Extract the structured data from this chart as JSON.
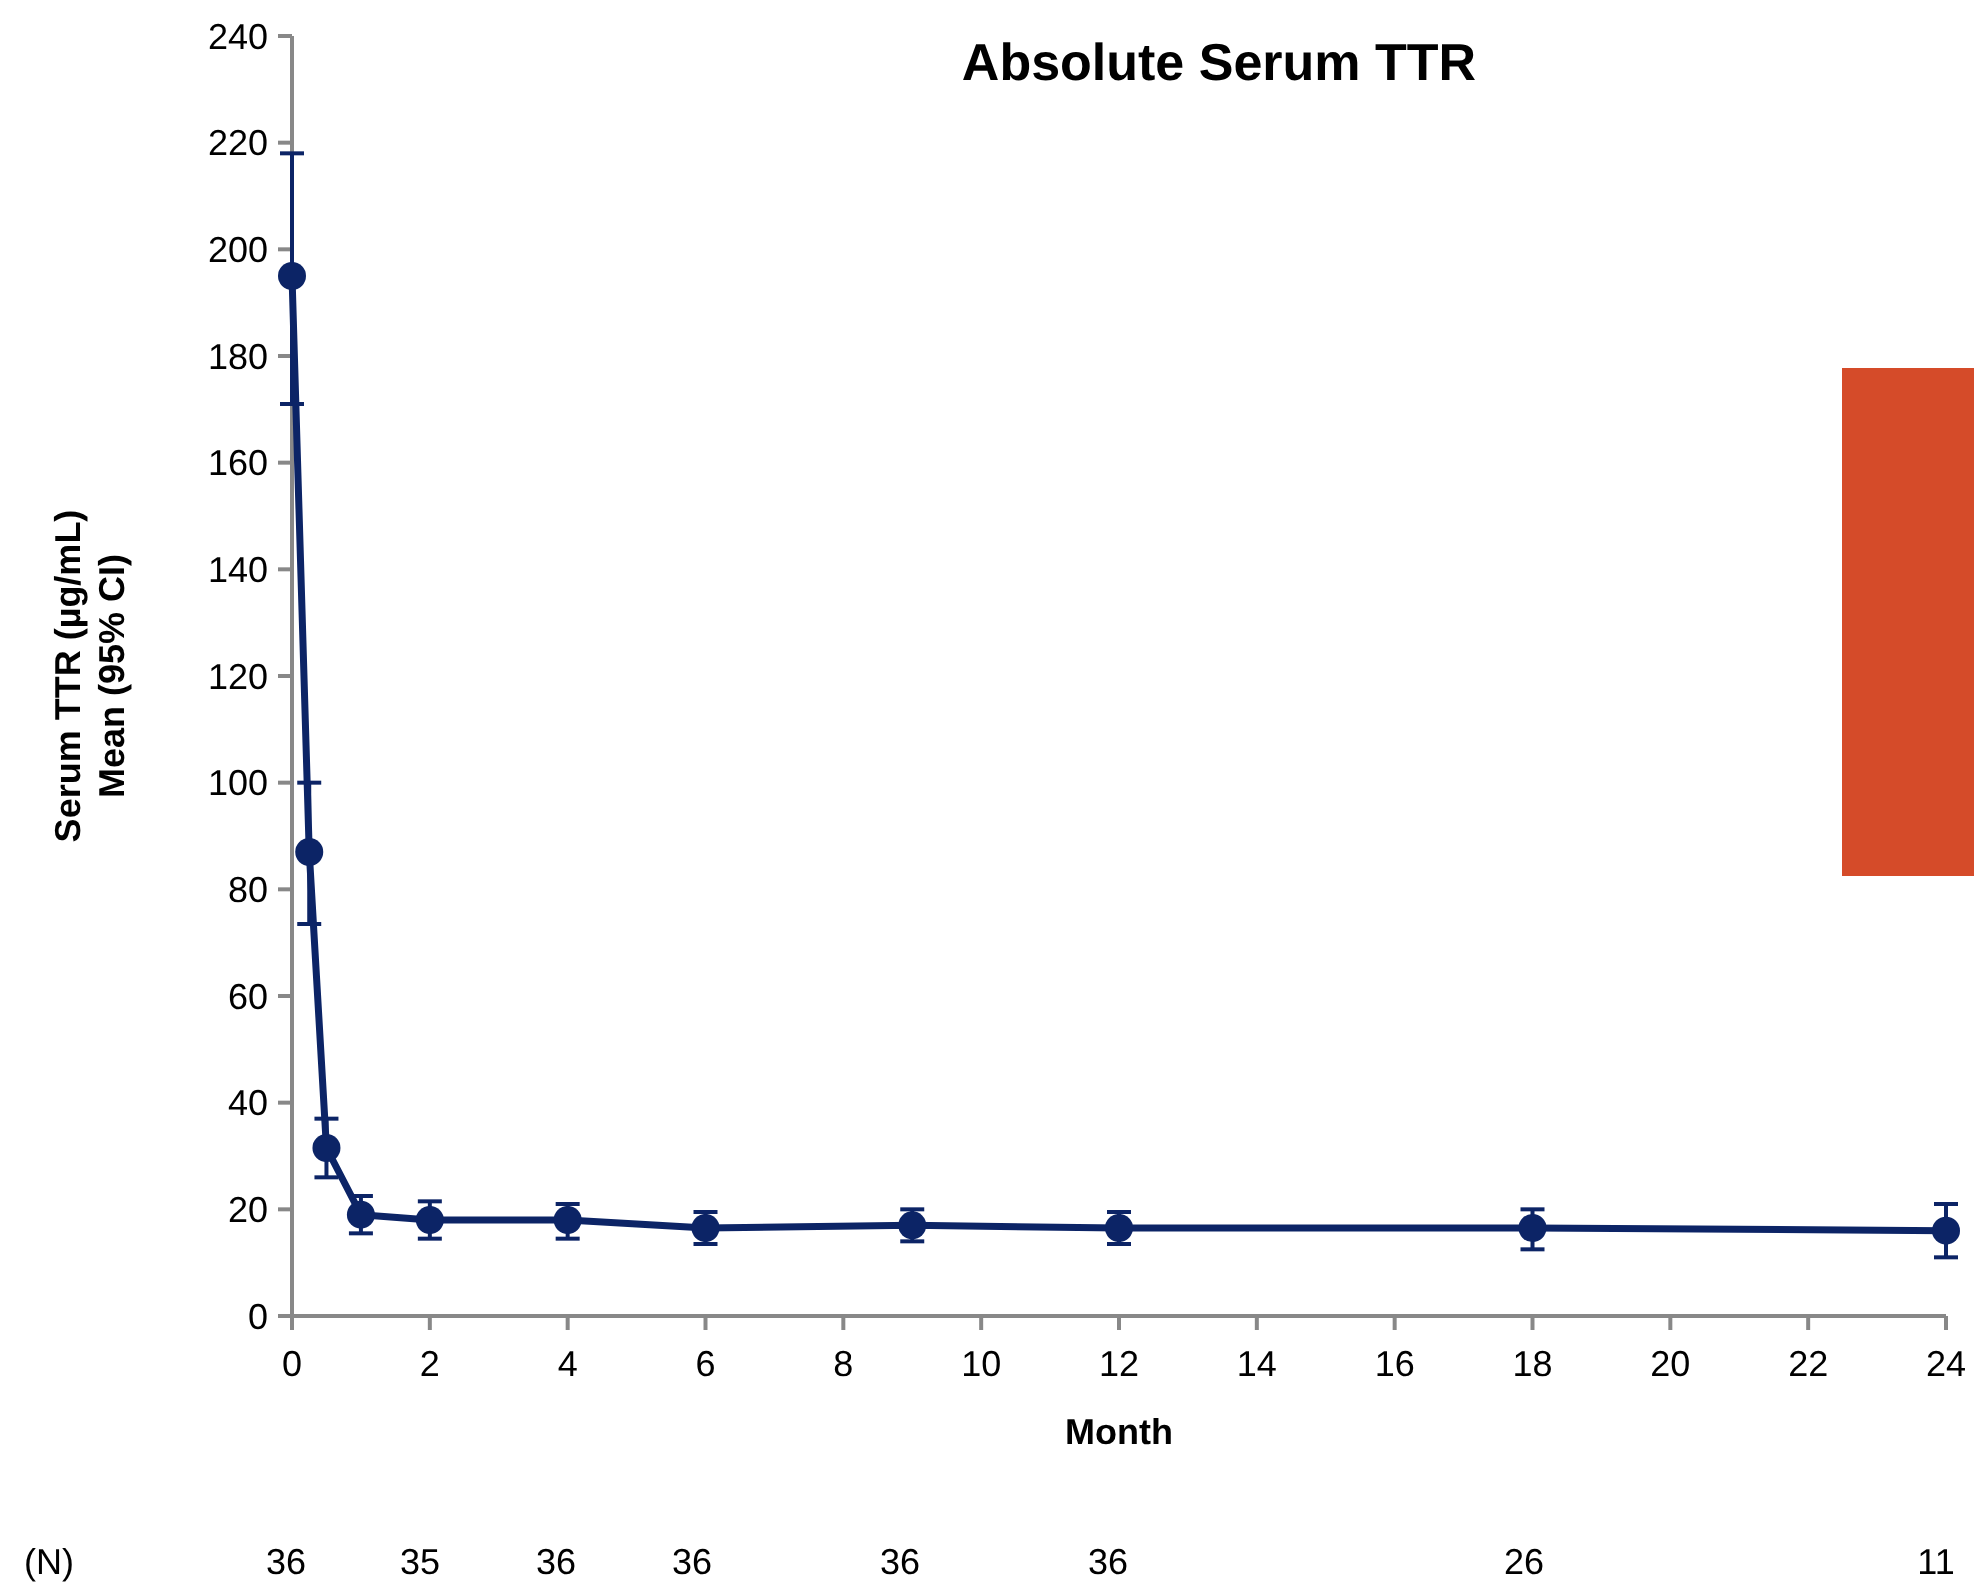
{
  "chart_data": {
    "type": "line",
    "title": "Absolute Serum TTR",
    "xlabel": "Month",
    "ylabel": "Serum TTR (µg/mL)\nMean (95% CI)",
    "x": [
      0,
      0.25,
      0.5,
      1,
      2,
      4,
      6,
      9,
      12,
      18,
      24
    ],
    "series": [
      {
        "color": "#0c2466",
        "values": [
          195,
          87,
          31.5,
          19,
          18,
          18,
          16.5,
          17,
          16.5,
          16.5,
          16
        ],
        "errors": [
          [
            171,
            218
          ],
          [
            73.5,
            100
          ],
          [
            26,
            37
          ],
          [
            15.5,
            22.5
          ],
          [
            14.5,
            21.5
          ],
          [
            14.5,
            21
          ],
          [
            13.5,
            19.5
          ],
          [
            14,
            20
          ],
          [
            13.5,
            19.5
          ],
          [
            12.5,
            20
          ],
          [
            11,
            21
          ]
        ]
      }
    ],
    "xlim": [
      0,
      24
    ],
    "xticks": [
      0,
      2,
      4,
      6,
      8,
      10,
      12,
      14,
      16,
      18,
      20,
      22,
      24
    ],
    "ylim": [
      0,
      240
    ],
    "yticks": [
      0,
      20,
      40,
      60,
      80,
      100,
      120,
      140,
      160,
      180,
      200,
      220,
      240
    ],
    "grid": false,
    "marker": "circle",
    "line_style": "solid",
    "annotations": [
      "(N)",
      "36",
      "35",
      "36",
      "36",
      "36",
      "36",
      "26",
      "11"
    ]
  }
}
